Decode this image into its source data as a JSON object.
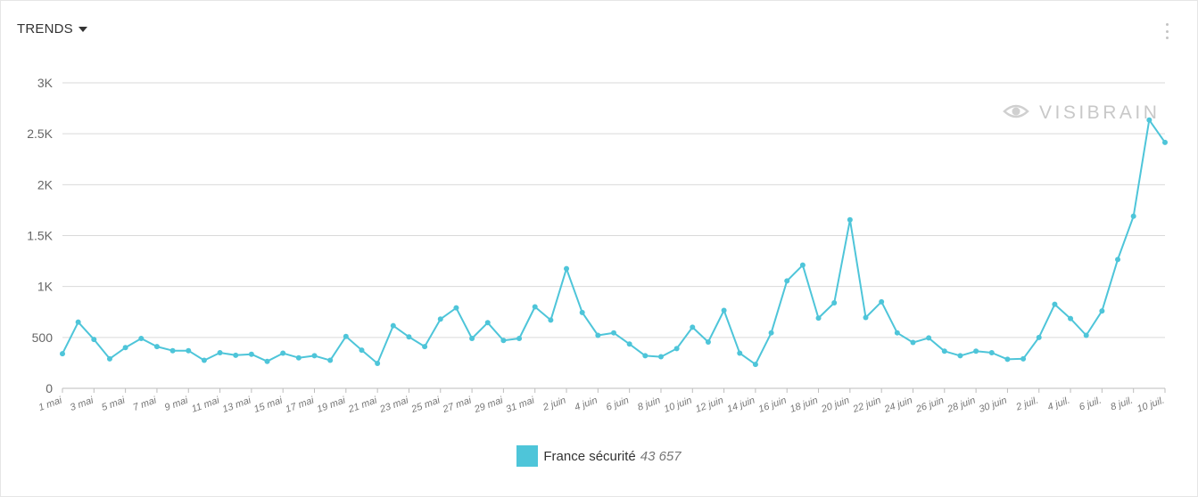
{
  "header": {
    "title": "TRENDS",
    "dropdown_icon": "caret-down-icon",
    "menu_icon": "vertical-dots-icon"
  },
  "watermark": {
    "brand": "VISIBRAIN",
    "icon": "eye-icon"
  },
  "legend": {
    "label": "France sécurité",
    "total": "43 657"
  },
  "colors": {
    "series": "#4ec5d9",
    "grid": "#d9d9d9",
    "axis_text": "#666666"
  },
  "chart_data": {
    "type": "line",
    "title": "",
    "xlabel": "",
    "ylabel": "",
    "ylim": [
      0,
      3000
    ],
    "grid": true,
    "legend_position": "bottom",
    "y_ticks": [
      {
        "value": 0,
        "label": "0"
      },
      {
        "value": 500,
        "label": "500"
      },
      {
        "value": 1000,
        "label": "1K"
      },
      {
        "value": 1500,
        "label": "1.5K"
      },
      {
        "value": 2000,
        "label": "2K"
      },
      {
        "value": 2500,
        "label": "2.5K"
      },
      {
        "value": 3000,
        "label": "3K"
      }
    ],
    "x_tick_labels": [
      "1 mai",
      "3 mai",
      "5 mai",
      "7 mai",
      "9 mai",
      "11 mai",
      "13 mai",
      "15 mai",
      "17 mai",
      "19 mai",
      "21 mai",
      "23 mai",
      "25 mai",
      "27 mai",
      "29 mai",
      "31 mai",
      "2 juin",
      "4 juin",
      "6 juin",
      "8 juin",
      "10 juin",
      "12 juin",
      "14 juin",
      "16 juin",
      "18 juin",
      "20 juin",
      "22 juin",
      "24 juin",
      "26 juin",
      "28 juin",
      "30 juin",
      "2 juil.",
      "4 juil.",
      "6 juil.",
      "8 juil.",
      "10 juil."
    ],
    "series": [
      {
        "name": "France sécurité",
        "values": [
          340,
          650,
          480,
          290,
          400,
          490,
          410,
          370,
          370,
          275,
          350,
          325,
          335,
          265,
          345,
          300,
          320,
          275,
          510,
          375,
          245,
          615,
          505,
          410,
          680,
          790,
          490,
          645,
          470,
          490,
          800,
          670,
          1175,
          745,
          520,
          545,
          435,
          320,
          310,
          390,
          600,
          455,
          765,
          345,
          235,
          545,
          1055,
          1210,
          690,
          840,
          1655,
          695,
          850,
          545,
          450,
          495,
          365,
          320,
          365,
          350,
          285,
          290,
          500,
          825,
          685,
          520,
          760,
          1265,
          1690,
          2635,
          2415
        ]
      }
    ]
  }
}
